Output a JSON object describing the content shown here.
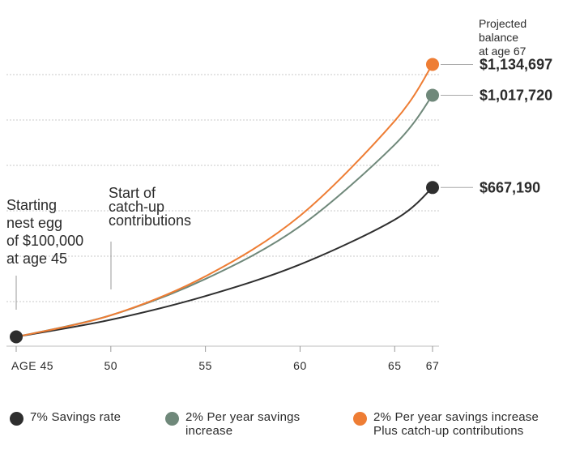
{
  "chart_data": {
    "type": "line",
    "xlabel": "",
    "ylabel": "",
    "x_ticks": [
      "AGE 45",
      "50",
      "55",
      "60",
      "65",
      "67"
    ],
    "x_tick_values": [
      45,
      50,
      55,
      60,
      65,
      67
    ],
    "xlim": [
      45,
      67
    ],
    "ylim": [
      0,
      1250000
    ],
    "grid": "horizontal dashed",
    "series": [
      {
        "name": "7% Savings rate",
        "color": "#2e2e2e",
        "x": [
          45,
          50,
          55,
          60,
          65,
          67
        ],
        "values": [
          100000,
          165000,
          255000,
          375000,
          545000,
          667190
        ]
      },
      {
        "name": "2% Per year savings increase",
        "color": "#6f887a",
        "x": [
          45,
          50,
          55,
          60,
          65,
          67
        ],
        "values": [
          100000,
          182000,
          320000,
          520000,
          830000,
          1017720
        ]
      },
      {
        "name": "2% Per year savings increase Plus catch-up contributions",
        "color": "#ee7d34",
        "x": [
          45,
          50,
          55,
          60,
          65,
          67
        ],
        "values": [
          100000,
          182000,
          330000,
          560000,
          920000,
          1134697
        ]
      }
    ],
    "end_labels": [
      "$1,134,697",
      "$1,017,720",
      "$667,190"
    ],
    "annotations": {
      "start_note": [
        "Starting",
        "nest egg",
        "of $100,000",
        "at age 45"
      ],
      "catchup_note": [
        "Start of",
        "catch-up",
        "contributions"
      ],
      "projected_note": [
        "Projected",
        "balance",
        "at age 67"
      ]
    }
  },
  "legend": [
    {
      "lines": [
        "7% Savings rate"
      ],
      "color": "#2e2e2e"
    },
    {
      "lines": [
        "2% Per year savings",
        "increase"
      ],
      "color": "#6f887a"
    },
    {
      "lines": [
        "2% Per year savings increase",
        "Plus catch-up contributions"
      ],
      "color": "#ee7d34"
    }
  ]
}
